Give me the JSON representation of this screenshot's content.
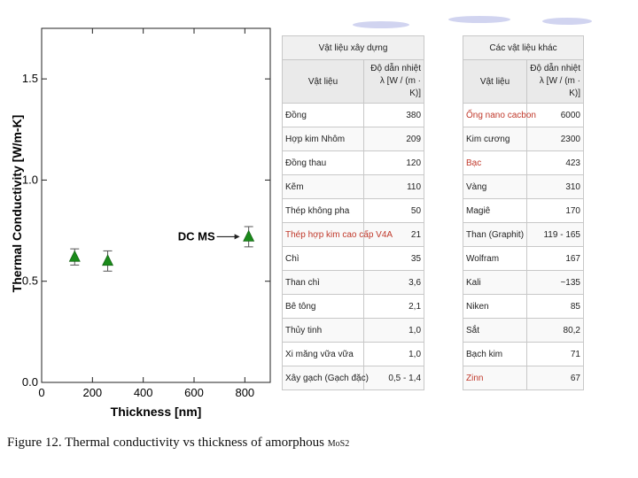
{
  "chart_data": {
    "type": "scatter",
    "xlabel": "Thickness [nm]",
    "ylabel": "Thermal Conductivity [W/m-K]",
    "xlim": [
      0,
      900
    ],
    "ylim": [
      0.0,
      1.75
    ],
    "x_ticks": [
      0,
      200,
      400,
      600,
      800
    ],
    "x_tick_labels": [
      "0",
      "200",
      "400",
      "600",
      "800"
    ],
    "y_ticks": [
      0.0,
      0.5,
      1.0,
      1.5
    ],
    "y_tick_labels": [
      "0.0",
      "0.5",
      "1.0",
      "1.5"
    ],
    "grid": false,
    "marker": "triangle",
    "marker_color": "#1a8a1a",
    "points": [
      {
        "x": 130,
        "y": 0.62,
        "err": 0.04
      },
      {
        "x": 260,
        "y": 0.6,
        "err": 0.05
      },
      {
        "x": 815,
        "y": 0.72,
        "err": 0.05
      }
    ],
    "annotation": {
      "text": "DC MS",
      "x": 815,
      "y": 0.72
    }
  },
  "caption": {
    "text": "Figure 12.  Thermal conductivity vs thickness of amorphous",
    "chem": "MoS2"
  },
  "table_left": {
    "caption": "Vật liệu xây dựng",
    "headers": [
      "Vật liệu",
      "Độ dẫn nhiệt λ [W / (m · K)]"
    ],
    "rows": [
      {
        "name": "Đồng",
        "value": "380"
      },
      {
        "name": "Hợp kim Nhôm",
        "value": "209"
      },
      {
        "name": "Đồng thau",
        "value": "120"
      },
      {
        "name": "Kẽm",
        "value": "110"
      },
      {
        "name": "Thép không pha",
        "value": "50"
      },
      {
        "name": "Thép hợp kim cao cấp V4A",
        "value": "21"
      },
      {
        "name": "Chì",
        "value": "35"
      },
      {
        "name": "Than chì",
        "value": "3,6"
      },
      {
        "name": "Bê tông",
        "value": "2,1"
      },
      {
        "name": "Thủy tinh",
        "value": "1,0"
      },
      {
        "name": "Xi măng vữa vữa",
        "value": "1,0"
      },
      {
        "name": "Xây gạch (Gạch đặc)",
        "value": "0,5 - 1,4"
      }
    ]
  },
  "table_right": {
    "caption": "Các vật liệu khác",
    "headers": [
      "Vật liệu",
      "Độ dẫn nhiệt λ [W / (m · K)]"
    ],
    "rows": [
      {
        "name": "Ống nano cacbon",
        "value": "6000"
      },
      {
        "name": "Kim cương",
        "value": "2300"
      },
      {
        "name": "Bạc",
        "value": "423"
      },
      {
        "name": "Vàng",
        "value": "310"
      },
      {
        "name": "Magiê",
        "value": "170"
      },
      {
        "name": "Than (Graphit)",
        "value": "119 - 165"
      },
      {
        "name": "Wolfram",
        "value": "167"
      },
      {
        "name": "Kali",
        "value": "~135"
      },
      {
        "name": "Niken",
        "value": "85"
      },
      {
        "name": "Sắt",
        "value": "80,2"
      },
      {
        "name": "Bạch kim",
        "value": "71"
      },
      {
        "name": "Zinn",
        "value": "67"
      }
    ]
  }
}
